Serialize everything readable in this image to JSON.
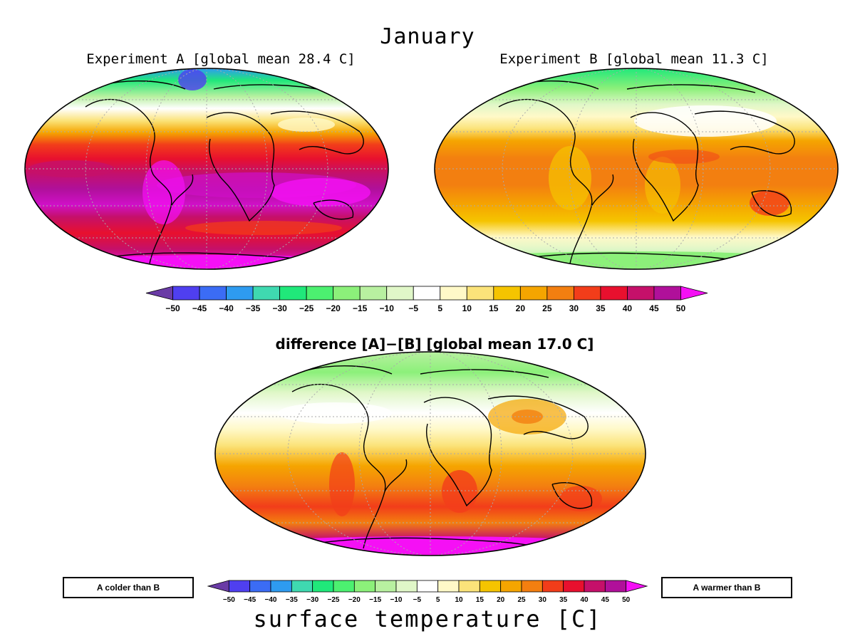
{
  "title": "January",
  "panels": [
    {
      "id": "a",
      "title": "Experiment A  [global mean 28.4 C]"
    },
    {
      "id": "b",
      "title": "Experiment B  [global mean 11.3 C]"
    },
    {
      "id": "diff",
      "title": "difference [A]−[B]  [global mean 17.0 C]"
    }
  ],
  "colorbar": {
    "ticks": [
      "-50",
      "-45",
      "-40",
      "-35",
      "-30",
      "-25",
      "-20",
      "-15",
      "-10",
      "-5",
      "5",
      "10",
      "15",
      "20",
      "25",
      "30",
      "35",
      "40",
      "45",
      "50"
    ],
    "colors": [
      "#6a3ba6",
      "#4f3ff0",
      "#3b6cf5",
      "#2e9bf0",
      "#3fd9b0",
      "#20e87a",
      "#4cf070",
      "#8cf07a",
      "#b8f0a0",
      "#e0f7c8",
      "#ffffff",
      "#fff9c8",
      "#fbe37a",
      "#f5c400",
      "#f5a500",
      "#f37f10",
      "#f23d1a",
      "#e8102e",
      "#c5106a",
      "#b0109a",
      "#f510f5"
    ]
  },
  "legend_notes": {
    "left": "A colder than B",
    "right": "A warmer than B"
  },
  "bottom_label": "surface temperature [C]"
}
